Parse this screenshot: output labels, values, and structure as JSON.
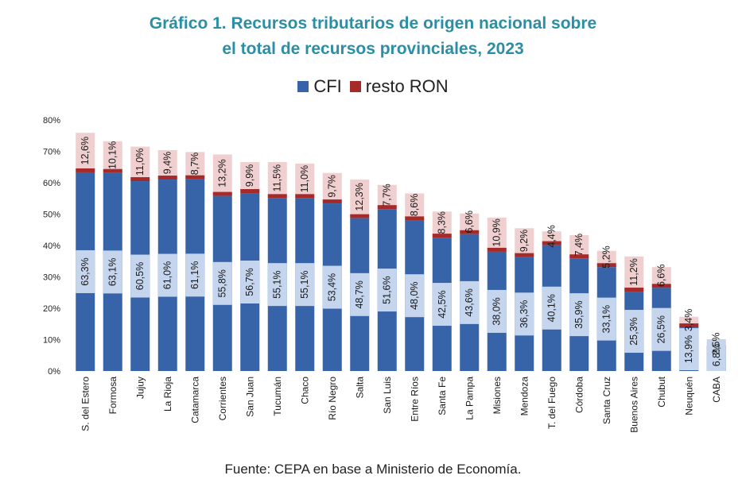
{
  "title_line1": "Gráfico 1. Recursos tributarios de origen nacional sobre",
  "title_line2": "el total de recursos provinciales, 2023",
  "source": "Fuente: CEPA en base a Ministerio de Economía.",
  "colors": {
    "cfi": "#3763a8",
    "resto_ron": "#a52a2a",
    "cfi_label_bg": "#c5d5ee",
    "resto_label_bg": "#efcfcf",
    "title": "#2a8fa6"
  },
  "chart_data": {
    "type": "bar",
    "stacked": true,
    "title": "Gráfico 1. Recursos tributarios de origen nacional sobre el total de recursos provinciales, 2023",
    "ylim": [
      0,
      80
    ],
    "yticks": [
      "0%",
      "10%",
      "20%",
      "30%",
      "40%",
      "50%",
      "60%",
      "70%",
      "80%"
    ],
    "categories": [
      "S. del Estero",
      "Formosa",
      "Jujuy",
      "La Rioja",
      "Catamarca",
      "Corrientes",
      "San Juan",
      "Tucumán",
      "Chaco",
      "Río Negro",
      "Salta",
      "San Luis",
      "Entre Ríos",
      "Santa Fe",
      "La Pampa",
      "Misiones",
      "Mendoza",
      "T. del Fuego",
      "Córdoba",
      "Santa Cruz",
      "Buenos Aires",
      "Chubut",
      "Neuquén",
      "CABA"
    ],
    "legend_position": "top",
    "series": [
      {
        "name": "CFI",
        "values": [
          63.3,
          63.1,
          60.5,
          61.0,
          61.1,
          55.8,
          56.7,
          55.1,
          55.1,
          53.4,
          48.7,
          51.6,
          48.0,
          42.5,
          43.6,
          38.0,
          36.3,
          40.1,
          35.9,
          33.1,
          25.3,
          26.5,
          13.9,
          6.8
        ],
        "labels": [
          "63,3%",
          "63,1%",
          "60,5%",
          "61,0%",
          "61,1%",
          "55,8%",
          "56,7%",
          "55,1%",
          "55,1%",
          "53,4%",
          "48,7%",
          "51,6%",
          "48,0%",
          "42,5%",
          "43,6%",
          "38,0%",
          "36,3%",
          "40,1%",
          "35,9%",
          "33,1%",
          "25,3%",
          "26,5%",
          "13,9%",
          "6,8%"
        ]
      },
      {
        "name": "resto RON",
        "values": [
          12.6,
          10.1,
          11.0,
          9.4,
          8.7,
          13.2,
          9.9,
          11.5,
          11.0,
          9.7,
          12.3,
          7.7,
          8.6,
          8.3,
          6.6,
          10.9,
          9.2,
          4.4,
          7.4,
          5.2,
          11.2,
          6.6,
          3.4,
          2.5
        ],
        "labels": [
          "12,6%",
          "10,1%",
          "11,0%",
          "9,4%",
          "8,7%",
          "13,2%",
          "9,9%",
          "11,5%",
          "11,0%",
          "9,7%",
          "12,3%",
          "7,7%",
          "8,6%",
          "8,3%",
          "6,6%",
          "10,9%",
          "9,2%",
          "4,4%",
          "7,4%",
          "5,2%",
          "11,2%",
          "6,6%",
          "3,4%",
          "2,5%"
        ]
      }
    ]
  }
}
